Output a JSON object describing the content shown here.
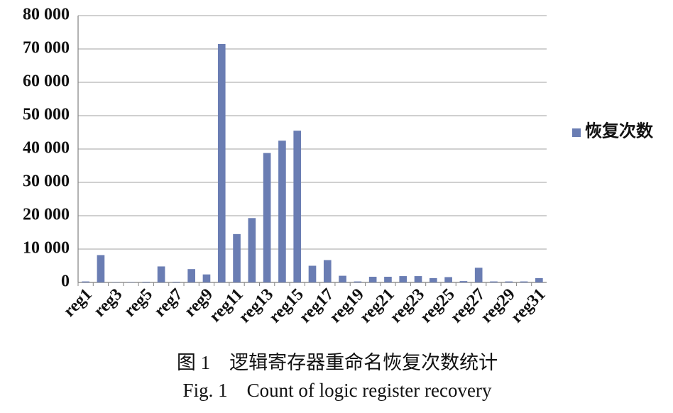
{
  "chart_data": {
    "type": "bar",
    "categories": [
      "reg1",
      null,
      "reg3",
      null,
      "reg5",
      null,
      "reg7",
      null,
      "reg9",
      null,
      "reg11",
      null,
      "reg13",
      null,
      "reg15",
      null,
      "reg17",
      null,
      "reg19",
      null,
      "reg21",
      null,
      "reg23",
      null,
      "reg25",
      null,
      "reg27",
      null,
      "reg29",
      null,
      "reg31"
    ],
    "series": [
      {
        "name": "恢复次数",
        "color": "#6a7db3",
        "values": [
          300,
          8200,
          100,
          100,
          200,
          4800,
          200,
          4000,
          2400,
          71500,
          14500,
          19300,
          38800,
          42500,
          45500,
          5000,
          6700,
          2000,
          300,
          1700,
          1700,
          1900,
          1900,
          1300,
          1600,
          400,
          4400,
          300,
          300,
          300,
          1300
        ]
      }
    ],
    "ylim": [
      0,
      80000
    ],
    "yticks": [
      {
        "value": 0,
        "label": "0"
      },
      {
        "value": 10000,
        "label": "10 000"
      },
      {
        "value": 20000,
        "label": "20 000"
      },
      {
        "value": 30000,
        "label": "30 000"
      },
      {
        "value": 40000,
        "label": "40 000"
      },
      {
        "value": 50000,
        "label": "50 000"
      },
      {
        "value": 60000,
        "label": "60 000"
      },
      {
        "value": 70000,
        "label": "70 000"
      },
      {
        "value": 80000,
        "label": "80 000"
      }
    ],
    "grid": true,
    "legend": "right",
    "caption_cn": "图 1　逻辑寄存器重命名恢复次数统计",
    "caption_en": "Fig. 1　Count of logic register recovery"
  }
}
